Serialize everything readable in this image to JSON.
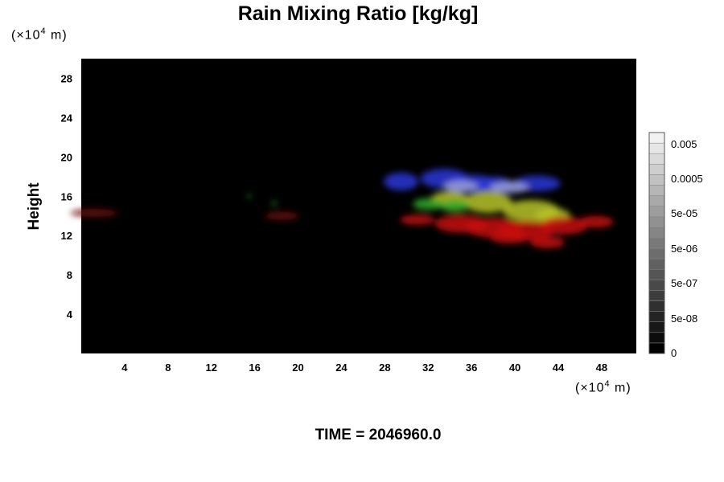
{
  "chart_data": {
    "type": "heatmap",
    "title": "Rain Mixing Ratio [kg/kg]",
    "ylabel": "Height",
    "x_unit": {
      "prefix": "(×10",
      "exp": "4",
      "suffix": " m)"
    },
    "y_unit": {
      "prefix": "(×10",
      "exp": "4",
      "suffix": " m)"
    },
    "xlim": [
      0,
      51.2
    ],
    "ylim": [
      0,
      30
    ],
    "x_ticks": [
      4,
      8,
      12,
      16,
      20,
      24,
      28,
      32,
      36,
      40,
      44,
      48
    ],
    "y_ticks": [
      4,
      8,
      12,
      16,
      20,
      24,
      28
    ],
    "background_color": "#000000",
    "blobs": [
      {
        "x": [
          29.5,
          33.5,
          36,
          38,
          42
        ],
        "y": [
          17.5,
          17.8,
          17.3,
          17.2,
          17.3
        ],
        "rx": [
          1.6,
          2.2,
          2.0,
          1.8,
          2.2
        ],
        "ry": [
          0.9,
          1.0,
          0.9,
          0.8,
          0.8
        ],
        "color": "#2a37d6"
      },
      {
        "x": [
          35,
          39.5
        ],
        "y": [
          17.0,
          16.9
        ],
        "rx": [
          1.6,
          1.8
        ],
        "ry": [
          0.6,
          0.6
        ],
        "color": "#9a9fdc"
      },
      {
        "x": [
          34,
          37.5,
          41.5,
          43.5
        ],
        "y": [
          15.6,
          15.4,
          14.5,
          14.0
        ],
        "rx": [
          1.8,
          2.2,
          2.6,
          1.6
        ],
        "ry": [
          0.9,
          1.1,
          1.1,
          0.8
        ],
        "color": "#b7c428"
      },
      {
        "x": [
          32,
          34.5
        ],
        "y": [
          15.2,
          15.0
        ],
        "rx": [
          1.4,
          1.4
        ],
        "ry": [
          0.6,
          0.6
        ],
        "color": "#2fa82a"
      },
      {
        "x": [
          31,
          35,
          38,
          41,
          44.5,
          47.5,
          39.5,
          43
        ],
        "y": [
          13.6,
          13.2,
          12.8,
          12.5,
          13.0,
          13.4,
          11.8,
          11.3
        ],
        "rx": [
          1.6,
          2.4,
          2.6,
          2.6,
          2.2,
          1.6,
          1.8,
          1.6
        ],
        "ry": [
          0.5,
          0.9,
          1.0,
          1.0,
          0.9,
          0.6,
          0.6,
          0.6
        ],
        "color": "#c81010"
      },
      {
        "x": [
          1.2,
          18.5
        ],
        "y": [
          14.3,
          14.0
        ],
        "rx": [
          2.2,
          1.6
        ],
        "ry": [
          0.4,
          0.4
        ],
        "color": "#6e1010"
      },
      {
        "x": [
          15.5,
          17.8
        ],
        "y": [
          16.0,
          15.3
        ],
        "rx": [
          0.3,
          0.3
        ],
        "ry": [
          0.2,
          0.25
        ],
        "color": "#1f6a1f"
      }
    ],
    "colorbar": {
      "levels": [
        "0",
        "5e-08",
        "5e-07",
        "5e-06",
        "5e-05",
        "0.0005",
        "0.005"
      ],
      "n_bins": 21,
      "color_min": "#000000",
      "color_max": "#f2f2f2"
    }
  },
  "time_label": "TIME = 2046960.0"
}
